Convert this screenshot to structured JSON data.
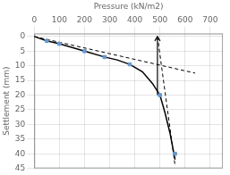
{
  "chart_data": {
    "type": "line",
    "xlabel": "Pressure (kN/m2)",
    "ylabel": "Settlement (mm)",
    "xlim": [
      0,
      750
    ],
    "ylim": [
      45,
      -1
    ],
    "xticks": [
      0,
      100,
      200,
      300,
      400,
      500,
      600,
      700
    ],
    "yticks": [
      0,
      5,
      10,
      15,
      20,
      25,
      30,
      35,
      40,
      45
    ],
    "grid": true,
    "series": [
      {
        "type": "line",
        "color": "#000000",
        "line_style": "solid",
        "marker": "none",
        "x": [
          0,
          50,
          100,
          200,
          280,
          330,
          380,
          430,
          470,
          500,
          520,
          540,
          560
        ],
        "values": [
          0,
          1.5,
          2.5,
          5,
          7,
          8,
          9.5,
          12,
          16,
          20,
          26,
          33,
          42
        ]
      },
      {
        "type": "scatter",
        "color": "#6699cc",
        "marker": "square",
        "x": [
          50,
          100,
          200,
          280,
          380,
          500,
          560
        ],
        "values": [
          1.5,
          2.5,
          5,
          7,
          9.5,
          20,
          40
        ]
      },
      {
        "type": "line",
        "color": "#000000",
        "line_style": "dashed",
        "marker": "none",
        "x": [
          0,
          640
        ],
        "values": [
          0,
          12.5
        ]
      },
      {
        "type": "line",
        "color": "#000000",
        "line_style": "dashed",
        "marker": "none",
        "x": [
          490,
          560
        ],
        "values": [
          0,
          44
        ]
      }
    ],
    "arrow": {
      "x": 490,
      "y_start": 20,
      "y_end": 0
    }
  }
}
